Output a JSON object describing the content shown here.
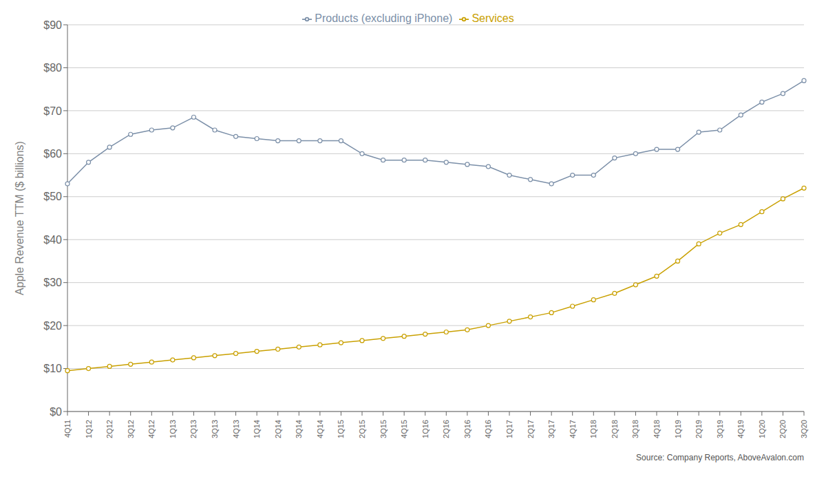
{
  "chart_data": {
    "type": "line",
    "ylabel": "Apple Revenue TTM ($ billions)",
    "categories": [
      "4Q11",
      "1Q12",
      "2Q12",
      "3Q12",
      "4Q12",
      "1Q13",
      "2Q13",
      "3Q13",
      "4Q13",
      "1Q14",
      "2Q14",
      "3Q14",
      "4Q14",
      "1Q15",
      "2Q15",
      "3Q15",
      "4Q15",
      "1Q16",
      "2Q16",
      "3Q16",
      "4Q16",
      "1Q17",
      "2Q17",
      "3Q17",
      "4Q17",
      "1Q18",
      "2Q18",
      "3Q18",
      "4Q18",
      "1Q19",
      "2Q19",
      "3Q19",
      "4Q19",
      "1Q20",
      "2Q20",
      "3Q20"
    ],
    "series": [
      {
        "name": "Products (excluding iPhone)",
        "color": "#7b8fa8",
        "marker": "circle",
        "values": [
          53.0,
          58.0,
          61.5,
          64.5,
          65.5,
          66.0,
          68.5,
          65.5,
          64.0,
          63.5,
          63.0,
          63.0,
          63.0,
          63.0,
          60.0,
          58.5,
          58.5,
          58.5,
          58.0,
          57.5,
          57.0,
          55.0,
          54.0,
          53.0,
          55.0,
          55.0,
          59.0,
          60.0,
          61.0,
          61.0,
          65.0,
          65.5,
          69.0,
          72.0,
          74.0,
          77.0
        ]
      },
      {
        "name": "Services",
        "color": "#c9a000",
        "marker": "circle",
        "values": [
          9.5,
          10.0,
          10.5,
          11.0,
          11.5,
          12.0,
          12.5,
          13.0,
          13.5,
          14.0,
          14.5,
          15.0,
          15.5,
          16.0,
          16.5,
          17.0,
          17.5,
          18.0,
          18.5,
          19.0,
          20.0,
          21.0,
          22.0,
          23.0,
          24.5,
          26.0,
          27.5,
          29.5,
          31.5,
          35.0,
          39.0,
          41.5,
          43.5,
          46.5,
          49.5,
          52.0
        ]
      }
    ],
    "ylim": [
      0,
      90
    ],
    "yticks": [
      {
        "value": 0,
        "label": "$0"
      },
      {
        "value": 10,
        "label": "$10"
      },
      {
        "value": 20,
        "label": "$20"
      },
      {
        "value": 30,
        "label": "$30"
      },
      {
        "value": 40,
        "label": "$40"
      },
      {
        "value": 50,
        "label": "$50"
      },
      {
        "value": 60,
        "label": "$60"
      },
      {
        "value": 70,
        "label": "$70"
      },
      {
        "value": 80,
        "label": "$80"
      },
      {
        "value": 90,
        "label": "$90"
      }
    ],
    "grid": true,
    "legend": "top",
    "annotations": [
      "Source: Company Reports, AboveAvalon.com"
    ]
  }
}
